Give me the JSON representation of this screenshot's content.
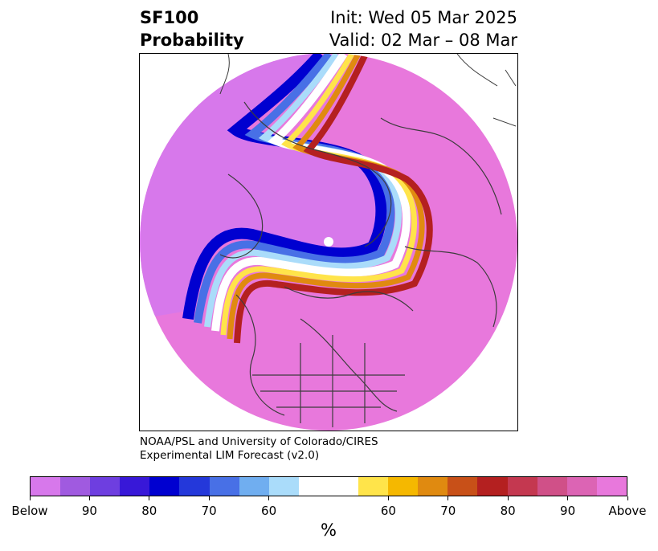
{
  "header": {
    "title_line1": "SF100",
    "title_line2": "Probability",
    "init": "Init: Wed 05 Mar 2025",
    "valid": "Valid: 02 Mar – 08 Mar"
  },
  "credit": {
    "line1": "NOAA/PSL and University of Colorado/CIRES",
    "line2": "Experimental LIM Forecast (v2.0)"
  },
  "colorbar": {
    "colors": [
      "#d778eb",
      "#a05ae0",
      "#6e3ee0",
      "#3818d8",
      "#0000d0",
      "#2438da",
      "#4870e6",
      "#70aef0",
      "#aadcfa",
      "#ffffff",
      "#ffe44a",
      "#f5b800",
      "#e08a10",
      "#c85018",
      "#b42020",
      "#c43850",
      "#d05088",
      "#dc64b4",
      "#e878dc"
    ],
    "ticks": [
      "Below",
      "90",
      "80",
      "70",
      "60",
      "60",
      "70",
      "80",
      "90",
      "Above"
    ],
    "unit": "%"
  },
  "map": {
    "colors": {
      "above": "#e878dc",
      "below": "#d778eb",
      "blue_dark": "#0000d0",
      "blue_mid": "#4870e6",
      "blue_light": "#aadcfa",
      "yellow": "#ffe44a",
      "orange": "#e08a10",
      "red": "#b42020",
      "coast": "#3c3c3c"
    }
  }
}
